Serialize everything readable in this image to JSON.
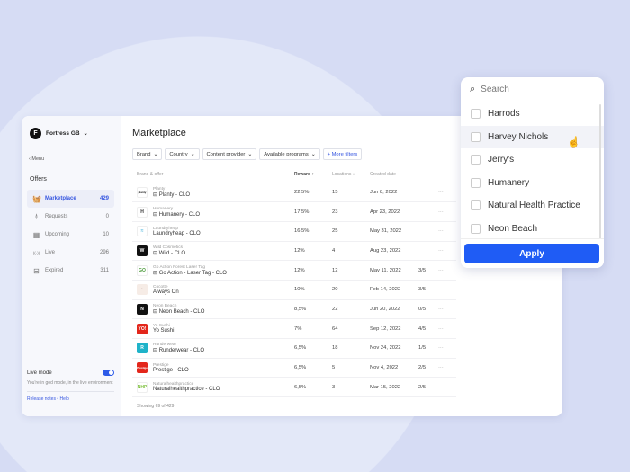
{
  "org": {
    "initial": "F",
    "name": "Fortress GB"
  },
  "sidebar": {
    "menu": "Menu",
    "section": "Offers",
    "items": [
      {
        "label": "Marketplace",
        "count": "429",
        "icon": "basket-icon",
        "active": true
      },
      {
        "label": "Requests",
        "count": "0",
        "icon": "bell-icon"
      },
      {
        "label": "Upcoming",
        "count": "10",
        "icon": "calendar-icon"
      },
      {
        "label": "Live",
        "count": "296",
        "icon": "broadcast-icon"
      },
      {
        "label": "Expired",
        "count": "311",
        "icon": "archive-icon"
      }
    ],
    "live_mode": {
      "label": "Live mode",
      "on": true,
      "desc": "You're in god mode, in the live environment"
    },
    "links": {
      "release": "Release notes",
      "sep": "•",
      "help": "Help"
    }
  },
  "main": {
    "title": "Marketplace",
    "filters": [
      "Brand",
      "Country",
      "Content provider",
      "Available programs"
    ],
    "more_filters": "+ More filters",
    "columns": {
      "brand": "Brand & offer",
      "reward": "Reward ↑",
      "locations": "Locations ↓",
      "created": "Created date"
    },
    "rows": [
      {
        "brand": "Planty",
        "offer": "Planty - CLO",
        "lock": true,
        "reward": "22,5%",
        "locations": "15",
        "created": "Jun 8, 2022",
        "ratio": "",
        "logo_bg": "#ffffff",
        "logo_fg": "#111",
        "logo_text": "planty"
      },
      {
        "brand": "Humanery",
        "offer": "Humanery - CLO",
        "lock": true,
        "reward": "17,5%",
        "locations": "23",
        "created": "Apr 23, 2022",
        "ratio": "",
        "logo_bg": "#ffffff",
        "logo_fg": "#333",
        "logo_text": "H"
      },
      {
        "brand": "Laundryheap",
        "offer": "Laundryheap - CLO",
        "lock": false,
        "reward": "16,5%",
        "locations": "25",
        "created": "May 31, 2022",
        "ratio": "",
        "logo_bg": "#ffffff",
        "logo_fg": "#2aa8d8",
        "logo_text": "≈"
      },
      {
        "brand": "Wild Cosmetics",
        "offer": "Wild - CLO",
        "lock": true,
        "reward": "12%",
        "locations": "4",
        "created": "Aug 23, 2022",
        "ratio": "",
        "logo_bg": "#111111",
        "logo_fg": "#fff",
        "logo_text": "W"
      },
      {
        "brand": "Go Action Forest Laser Tag",
        "offer": "Go Action - Laser Tag - CLO",
        "lock": true,
        "reward": "12%",
        "locations": "12",
        "created": "May 11, 2022",
        "ratio": "3/5",
        "logo_bg": "#ffffff",
        "logo_fg": "#4a9a3a",
        "logo_text": "GO"
      },
      {
        "brand": "Cocotte",
        "offer": "Always On",
        "lock": false,
        "reward": "10%",
        "locations": "20",
        "created": "Feb 14, 2022",
        "ratio": "3/5",
        "logo_bg": "#f6ece6",
        "logo_fg": "#a88",
        "logo_text": "·"
      },
      {
        "brand": "Neon Beach",
        "offer": "Neon Beach  - CLO",
        "lock": true,
        "reward": "8,5%",
        "locations": "22",
        "created": "Jun 20, 2022",
        "ratio": "0/5",
        "logo_bg": "#111111",
        "logo_fg": "#fff",
        "logo_text": "N"
      },
      {
        "brand": "Yo Sushi",
        "offer": "Yo Sushi",
        "lock": false,
        "reward": "7%",
        "locations": "64",
        "created": "Sep 12, 2022",
        "ratio": "4/5",
        "logo_bg": "#e3261b",
        "logo_fg": "#fff",
        "logo_text": "YO!"
      },
      {
        "brand": "Runderwear",
        "offer": "Runderwear - CLO",
        "lock": true,
        "reward": "6,5%",
        "locations": "18",
        "created": "Nov 24, 2022",
        "ratio": "1/5",
        "logo_bg": "#1fb3c9",
        "logo_fg": "#fff",
        "logo_text": "R"
      },
      {
        "brand": "Prestige",
        "offer": "Prestige - CLO",
        "lock": false,
        "reward": "6,5%",
        "locations": "5",
        "created": "Nov 4, 2022",
        "ratio": "2/5",
        "logo_bg": "#e3261b",
        "logo_fg": "#fff",
        "logo_text": "Prestige"
      },
      {
        "brand": "Naturalhealthpractice",
        "offer": "Naturalhealthpractice - CLO",
        "lock": false,
        "reward": "6,5%",
        "locations": "3",
        "created": "Mar 15, 2022",
        "ratio": "2/5",
        "logo_bg": "#ffffff",
        "logo_fg": "#7cbf3a",
        "logo_text": "NHP"
      }
    ],
    "row_menu": "···",
    "showing": "Showing 69 of 429"
  },
  "dropdown": {
    "search_placeholder": "Search",
    "items": [
      "Harrods",
      "Harvey Nichols",
      "Jerry's",
      "Humanery",
      "Natural Health Practice",
      "Neon Beach"
    ],
    "hovered": "Harvey Nichols",
    "apply": "Apply"
  },
  "colors": {
    "accent": "#1f5cf5",
    "background": "#d6dcf4"
  }
}
